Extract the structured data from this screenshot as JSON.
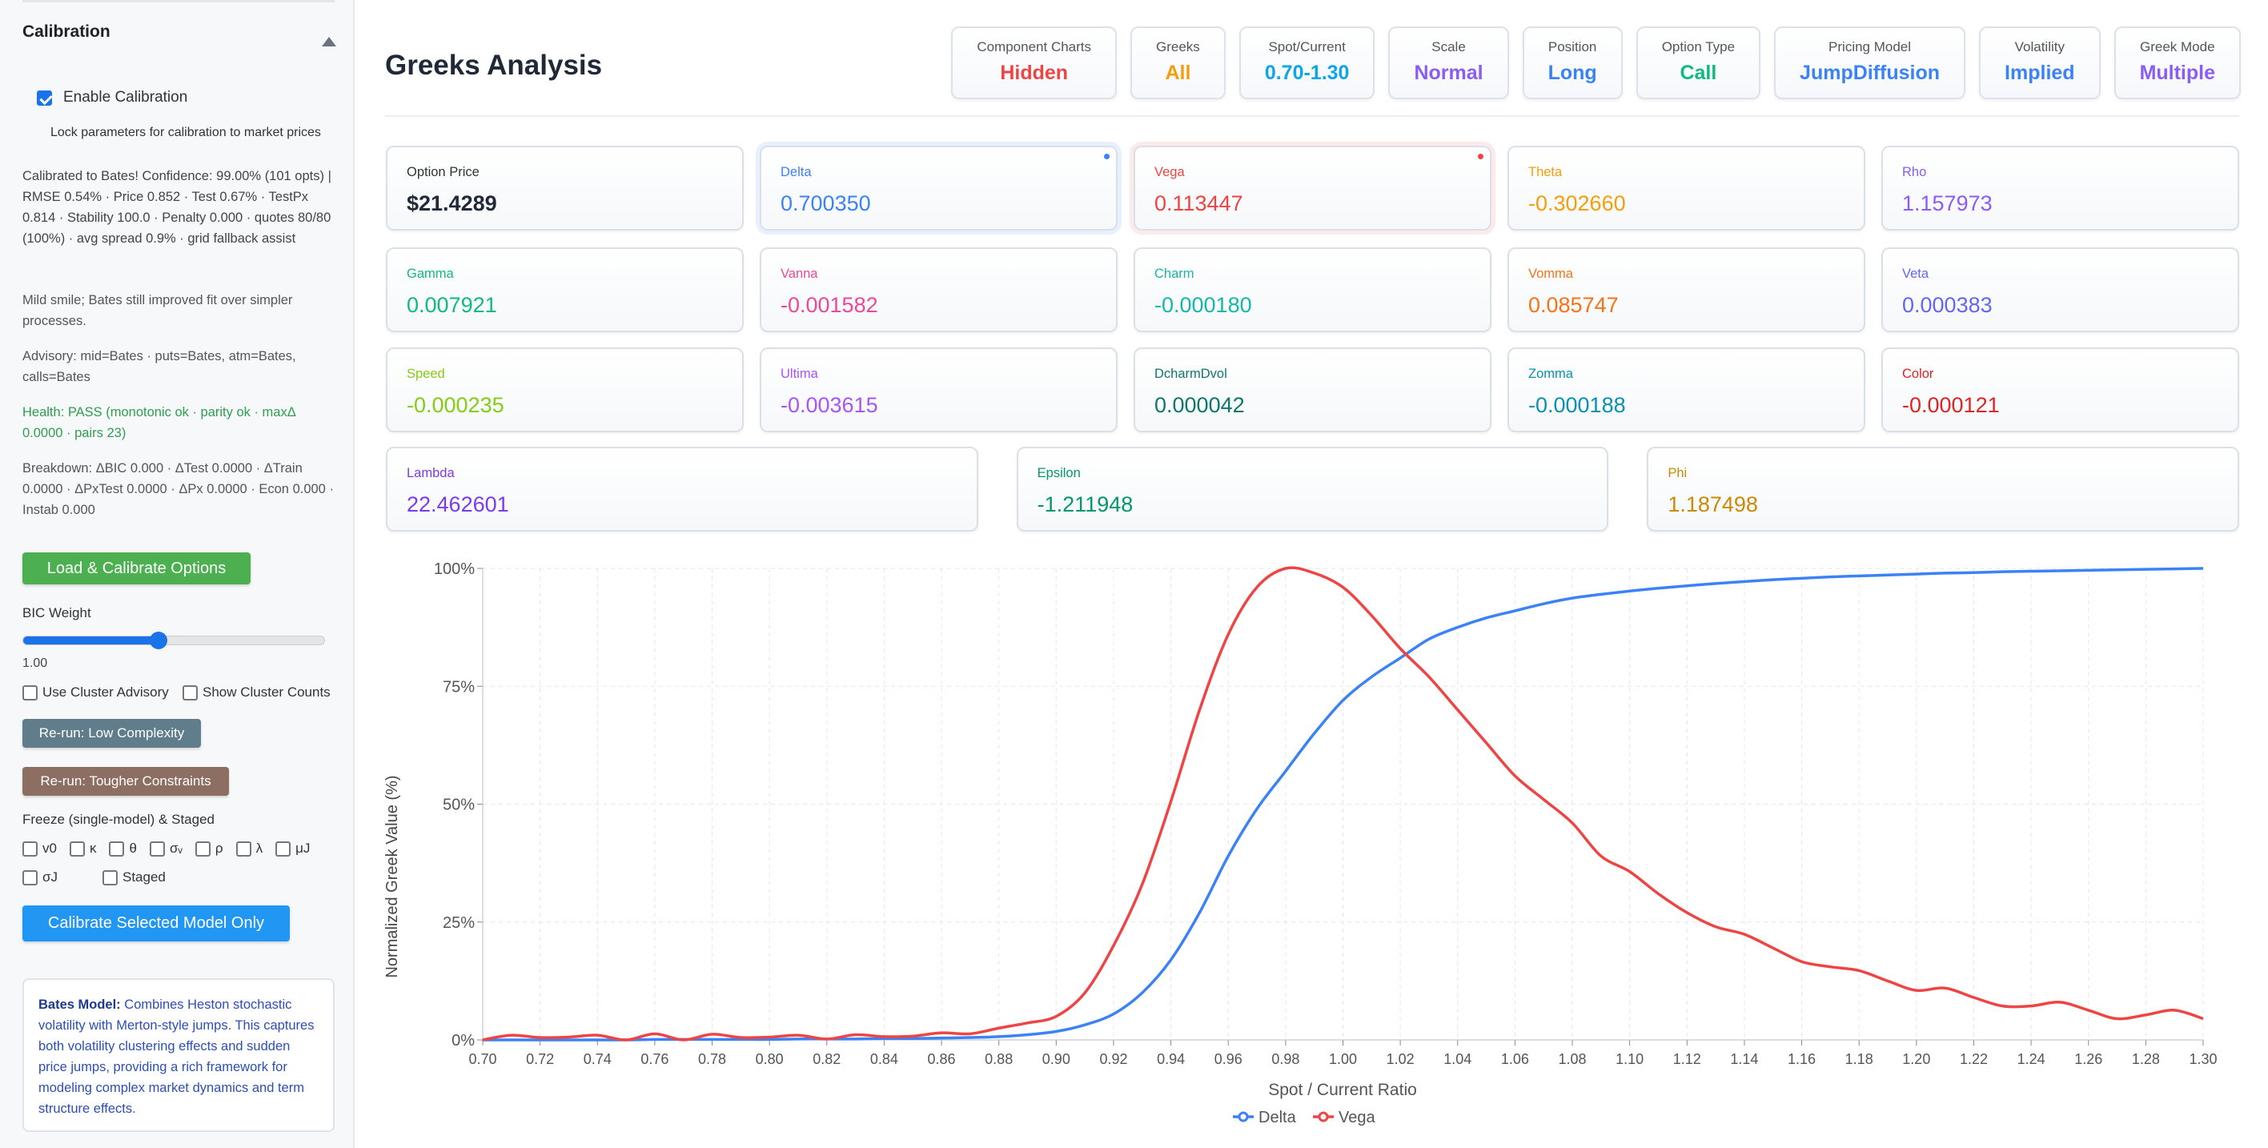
{
  "sidebar": {
    "section_title": "Calibration",
    "enable_label": "Enable Calibration",
    "enable_checked": true,
    "lock_note": "Lock parameters for calibration to market prices",
    "status": "Calibrated to Bates! Confidence: 99.00% (101 opts) | RMSE 0.54% · Price 0.852 · Test 0.67% · TestPx 0.814 · Stability 100.0 · Penalty 0.000 · quotes 80/80 (100%) · avg spread 0.9% · grid fallback assist",
    "smile_note": "Mild smile; Bates still improved fit over simpler processes.",
    "advisory": "Advisory: mid=Bates · puts=Bates, atm=Bates, calls=Bates",
    "health": "Health: PASS (monotonic ok · parity ok · maxΔ 0.0000 · pairs 23)",
    "breakdown": "Breakdown: ΔBIC 0.000 · ΔTest 0.0000 · ΔTrain 0.0000 · ΔPxTest 0.0000 · ΔPx 0.0000 · Econ 0.000 · Instab 0.000",
    "load_button": "Load & Calibrate Options",
    "bic_label": "BIC Weight",
    "bic_fraction": 0.45,
    "bic_value": "1.00",
    "use_cluster": "Use Cluster Advisory",
    "show_counts": "Show Cluster Counts",
    "rerun_low": "Re-run: Low Complexity",
    "rerun_tough": "Re-run: Tougher Constraints",
    "freeze_label": "Freeze (single-model) & Staged",
    "freeze_params": [
      "v0",
      "κ",
      "θ",
      "σᵥ",
      "ρ",
      "λ",
      "μJ",
      "σJ",
      "Staged"
    ],
    "calibrate_button": "Calibrate Selected Model Only",
    "info_bold": "Bates Model:",
    "info_text": " Combines Heston stochastic volatility with Merton-style jumps. This captures both volatility clustering effects and sudden price jumps, providing a rich framework for modeling complex market dynamics and term structure effects.",
    "colors": {
      "load": "#4caf50",
      "low": "#607d8b",
      "tough": "#8d6e63",
      "calibrate": "#2196f3",
      "health": "#2e9e4f"
    }
  },
  "header": {
    "title": "Greeks Analysis",
    "badges": [
      {
        "label": "Component Charts",
        "value": "Hidden",
        "color": "#ef4444"
      },
      {
        "label": "Greeks",
        "value": "All",
        "color": "#f59e0b"
      },
      {
        "label": "Spot/Current",
        "value": "0.70-1.30",
        "color": "#0ea5e9"
      },
      {
        "label": "Scale",
        "value": "Normal",
        "color": "#8b5cf6"
      },
      {
        "label": "Position",
        "value": "Long",
        "color": "#3b82f6"
      },
      {
        "label": "Option Type",
        "value": "Call",
        "color": "#10b981"
      },
      {
        "label": "Pricing Model",
        "value": "JumpDiffusion",
        "color": "#3b82f6"
      },
      {
        "label": "Volatility",
        "value": "Implied",
        "color": "#3b82f6"
      },
      {
        "label": "Greek Mode",
        "value": "Multiple",
        "color": "#8b5cf6"
      }
    ]
  },
  "cards": [
    {
      "label": "Option Price",
      "value": "$21.4289",
      "color": "#1f2937",
      "label_color": "#333"
    },
    {
      "label": "Delta",
      "value": "0.700350",
      "color": "#3b82f6",
      "highlight": "blue"
    },
    {
      "label": "Vega",
      "value": "0.113447",
      "color": "#ef4444",
      "highlight": "red"
    },
    {
      "label": "Theta",
      "value": "-0.302660",
      "color": "#f59e0b"
    },
    {
      "label": "Rho",
      "value": "1.157973",
      "color": "#8b5cf6"
    },
    {
      "label": "Gamma",
      "value": "0.007921",
      "color": "#10b981"
    },
    {
      "label": "Vanna",
      "value": "-0.001582",
      "color": "#ec4899"
    },
    {
      "label": "Charm",
      "value": "-0.000180",
      "color": "#14b8a6"
    },
    {
      "label": "Vomma",
      "value": "0.085747",
      "color": "#f97316"
    },
    {
      "label": "Veta",
      "value": "0.000383",
      "color": "#6366f1"
    },
    {
      "label": "Speed",
      "value": "-0.000235",
      "color": "#84cc16"
    },
    {
      "label": "Ultima",
      "value": "-0.003615",
      "color": "#a855f7"
    },
    {
      "label": "DcharmDvol",
      "value": "0.000042",
      "color": "#0f766e"
    },
    {
      "label": "Zomma",
      "value": "-0.000188",
      "color": "#0891b2"
    },
    {
      "label": "Color",
      "value": "-0.000121",
      "color": "#dc2626"
    },
    {
      "label": "Lambda",
      "value": "22.462601",
      "color": "#7c3aed"
    },
    {
      "label": "Epsilon",
      "value": "-1.211948",
      "color": "#059669"
    },
    {
      "label": "Phi",
      "value": "1.187498",
      "color": "#ca8a04"
    }
  ],
  "chart_data": {
    "type": "line",
    "xlabel": "Spot / Current Ratio",
    "ylabel": "Normalized Greek Value (%)",
    "xlim": [
      0.7,
      1.3
    ],
    "ylim": [
      0,
      100
    ],
    "yticks": [
      "0%",
      "25%",
      "50%",
      "75%",
      "100%"
    ],
    "grid": true,
    "legend": "bottom",
    "x": [
      0.7,
      0.71,
      0.72,
      0.73,
      0.74,
      0.75,
      0.76,
      0.77,
      0.78,
      0.79,
      0.8,
      0.81,
      0.82,
      0.83,
      0.84,
      0.85,
      0.86,
      0.87,
      0.88,
      0.89,
      0.9,
      0.91,
      0.92,
      0.93,
      0.94,
      0.95,
      0.96,
      0.97,
      0.98,
      0.99,
      1.0,
      1.01,
      1.02,
      1.03,
      1.04,
      1.05,
      1.06,
      1.07,
      1.08,
      1.09,
      1.1,
      1.11,
      1.12,
      1.13,
      1.14,
      1.15,
      1.16,
      1.17,
      1.18,
      1.19,
      1.2,
      1.21,
      1.22,
      1.23,
      1.24,
      1.25,
      1.26,
      1.27,
      1.28,
      1.29,
      1.3
    ],
    "series": [
      {
        "name": "Delta",
        "color": "#3b82f6",
        "values": [
          0,
          0,
          0,
          0,
          0,
          0,
          0.1,
          0.1,
          0.1,
          0.1,
          0.1,
          0.2,
          0.2,
          0.2,
          0.3,
          0.3,
          0.4,
          0.5,
          0.7,
          1.1,
          1.8,
          3.2,
          5.5,
          10,
          17,
          27,
          39,
          49,
          57,
          65,
          72,
          77,
          81,
          85,
          87.5,
          89.5,
          91,
          92.5,
          93.7,
          94.5,
          95.2,
          95.8,
          96.3,
          96.8,
          97.2,
          97.6,
          97.9,
          98.2,
          98.4,
          98.6,
          98.8,
          99,
          99.1,
          99.3,
          99.4,
          99.5,
          99.6,
          99.7,
          99.8,
          99.9,
          100
        ]
      },
      {
        "name": "Vega",
        "color": "#ef4444",
        "values": [
          0,
          1,
          0.5,
          0.6,
          1,
          0,
          1.3,
          0,
          1.2,
          0.5,
          0.6,
          1,
          0.2,
          1.1,
          0.7,
          0.8,
          1.5,
          1.3,
          2.5,
          3.6,
          5,
          10,
          20,
          33,
          50.6,
          70,
          86,
          96,
          100,
          99,
          96,
          90,
          83,
          77,
          70,
          63,
          56,
          51,
          46,
          39,
          35.7,
          31,
          27,
          24,
          22.4,
          19.5,
          16.6,
          15.5,
          14.7,
          12.5,
          10.5,
          11,
          9,
          7.2,
          7.2,
          8,
          6.3,
          4.5,
          5.3,
          6.3,
          4.5
        ]
      }
    ]
  }
}
